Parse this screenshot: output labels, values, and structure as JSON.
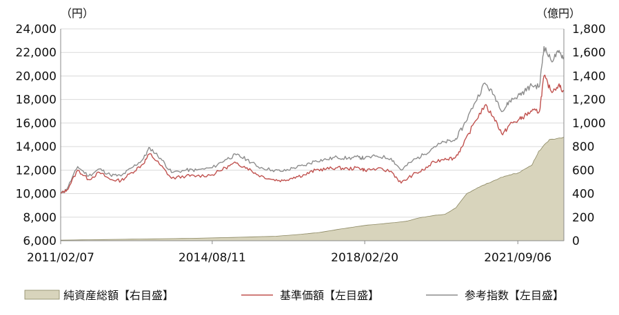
{
  "chart_data": {
    "type": "line",
    "x_tick_labels": [
      "2011/02/07",
      "2014/08/11",
      "2018/02/20",
      "2021/09/06"
    ],
    "x_range": [
      "2011/02/07",
      "2022/09/30"
    ],
    "left_axis": {
      "unit_label": "（円）",
      "range": [
        6000,
        24000
      ],
      "tick_labels": [
        "6,000",
        "8,000",
        "10,000",
        "12,000",
        "14,000",
        "16,000",
        "18,000",
        "20,000",
        "22,000",
        "24,000"
      ],
      "ticks": [
        6000,
        8000,
        10000,
        12000,
        14000,
        16000,
        18000,
        20000,
        22000,
        24000
      ]
    },
    "right_axis": {
      "unit_label": "（億円）",
      "range": [
        0,
        1800
      ],
      "tick_labels": [
        "0",
        "200",
        "400",
        "600",
        "800",
        "1,000",
        "1,200",
        "1,400",
        "1,600",
        "1,800"
      ],
      "ticks": [
        0,
        200,
        400,
        600,
        800,
        1000,
        1200,
        1400,
        1600,
        1800
      ]
    },
    "grid": "horizontal",
    "legend_position": "bottom",
    "series": [
      {
        "name": "純資産総額【右目盛】",
        "kind": "area",
        "axis": "right",
        "color": "#d8d4bc",
        "edge_color": "#8a8660",
        "x": [
          "2011/02/07",
          "2012/02/01",
          "2013/02/01",
          "2014/02/01",
          "2015/02/01",
          "2016/02/01",
          "2016/09/01",
          "2017/02/01",
          "2017/08/01",
          "2018/02/20",
          "2018/08/01",
          "2019/02/01",
          "2019/06/01",
          "2019/10/01",
          "2020/01/01",
          "2020/04/01",
          "2020/07/01",
          "2020/10/01",
          "2021/01/01",
          "2021/04/01",
          "2021/07/01",
          "2021/09/06",
          "2022/01/01",
          "2022/03/01",
          "2022/06/01",
          "2022/09/30"
        ],
        "values": [
          5,
          10,
          15,
          20,
          28,
          38,
          55,
          70,
          100,
          130,
          145,
          165,
          195,
          215,
          225,
          280,
          400,
          450,
          490,
          530,
          560,
          575,
          640,
          760,
          860,
          880
        ]
      },
      {
        "name": "基準価額【左目盛】",
        "kind": "line",
        "axis": "left",
        "color": "#c0504d",
        "x": [
          "2011/02/07",
          "2011/04/01",
          "2011/07/01",
          "2011/10/01",
          "2012/01/01",
          "2012/04/01",
          "2012/07/01",
          "2012/10/01",
          "2013/01/01",
          "2013/03/01",
          "2013/06/01",
          "2013/09/01",
          "2014/01/01",
          "2014/04/01",
          "2014/08/11",
          "2014/12/01",
          "2015/03/01",
          "2015/06/01",
          "2015/09/01",
          "2016/01/01",
          "2016/04/01",
          "2016/07/01",
          "2016/10/01",
          "2017/01/01",
          "2017/04/01",
          "2017/07/01",
          "2017/10/01",
          "2018/01/01",
          "2018/02/20",
          "2018/06/01",
          "2018/10/01",
          "2018/12/25",
          "2019/04/01",
          "2019/07/01",
          "2019/10/01",
          "2020/01/01",
          "2020/03/20",
          "2020/06/01",
          "2020/09/01",
          "2020/12/01",
          "2021/02/15",
          "2021/05/01",
          "2021/07/01",
          "2021/09/06",
          "2021/11/01",
          "2022/01/01",
          "2022/03/08",
          "2022/04/15",
          "2022/06/15",
          "2022/08/15",
          "2022/09/30"
        ],
        "values": [
          10000,
          10300,
          12000,
          11200,
          11800,
          11200,
          11100,
          11800,
          12500,
          13400,
          12400,
          11300,
          11500,
          11500,
          11600,
          12200,
          12600,
          12200,
          11600,
          11200,
          11100,
          11400,
          11600,
          12000,
          12100,
          12200,
          12100,
          12200,
          12000,
          12100,
          11900,
          10900,
          11600,
          12000,
          12700,
          13000,
          13000,
          14100,
          16000,
          17500,
          16500,
          15000,
          15900,
          16200,
          16600,
          17000,
          17000,
          20000,
          18700,
          19200,
          18700
        ]
      },
      {
        "name": "参考指数【左目盛】",
        "kind": "line",
        "axis": "left",
        "color": "#8c8c8c",
        "x": [
          "2011/02/07",
          "2011/04/01",
          "2011/07/01",
          "2011/10/01",
          "2012/01/01",
          "2012/04/01",
          "2012/07/01",
          "2012/10/01",
          "2013/01/01",
          "2013/03/01",
          "2013/06/01",
          "2013/09/01",
          "2014/01/01",
          "2014/04/01",
          "2014/08/11",
          "2014/12/01",
          "2015/03/01",
          "2015/06/01",
          "2015/09/01",
          "2016/01/01",
          "2016/04/01",
          "2016/07/01",
          "2016/10/01",
          "2017/01/01",
          "2017/04/01",
          "2017/07/01",
          "2017/10/01",
          "2018/01/01",
          "2018/02/20",
          "2018/06/01",
          "2018/10/01",
          "2018/12/25",
          "2019/04/01",
          "2019/07/01",
          "2019/10/01",
          "2020/01/01",
          "2020/03/20",
          "2020/06/01",
          "2020/09/01",
          "2020/12/01",
          "2021/02/15",
          "2021/05/01",
          "2021/07/01",
          "2021/09/06",
          "2021/11/01",
          "2022/01/01",
          "2022/03/08",
          "2022/04/15",
          "2022/06/15",
          "2022/08/15",
          "2022/09/30"
        ],
        "values": [
          10000,
          10400,
          12300,
          11500,
          12100,
          11600,
          11500,
          12200,
          12900,
          13900,
          13000,
          11800,
          12000,
          12000,
          12200,
          12900,
          13300,
          12900,
          12300,
          12000,
          11900,
          12200,
          12400,
          12800,
          12900,
          13100,
          13000,
          13100,
          13000,
          13200,
          13000,
          12000,
          12800,
          13300,
          14000,
          14400,
          14500,
          15700,
          17600,
          19400,
          18400,
          17000,
          17900,
          18300,
          18700,
          19200,
          19100,
          22500,
          21300,
          22000,
          21600
        ]
      }
    ]
  }
}
